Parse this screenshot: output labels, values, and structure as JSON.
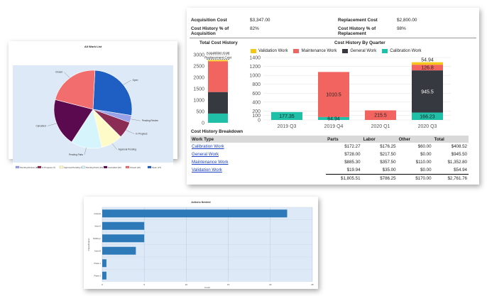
{
  "work_list": {
    "title": "All Work List",
    "chart_data": {
      "type": "pie",
      "categories": [
        "Open",
        "Pending Review",
        "In Progress",
        "Approval Pending",
        "Pending Parts",
        "Cancelled",
        "Closed"
      ],
      "values": [
        27,
        3,
        7,
        9,
        13,
        20,
        22
      ],
      "colors": [
        "#1f5fc4",
        "#9aa2e8",
        "#8b2c55",
        "#fffbc8",
        "#d6f4fb",
        "#5c0a4f",
        "#f26d6d"
      ],
      "legend": "bottom"
    },
    "legend_items": [
      "Pending Review (3)",
      "In Progress (7)",
      "Approval Pending (9)",
      "Pending Parts (13)",
      "Cancelled (20)",
      "Closed (22)",
      "Open (27)"
    ]
  },
  "cost": {
    "acquisition_label": "Acquisition Cost",
    "acquisition_value": "$3,347.00",
    "replacement_label": "Replacement Cost",
    "replacement_value": "$2,800.00",
    "pct_acq_label_1": "Cost History % of",
    "pct_acq_label_2": "Acquisition",
    "pct_acq_value": "82%",
    "pct_rep_label_1": "Cost History % of",
    "pct_rep_label_2": "Replacement",
    "pct_rep_value": "98%",
    "total_title": "Total Cost History",
    "quarter_title": "Cost History By Quarter",
    "breakdown_title": "Cost History Breakdown"
  },
  "total_cost_chart": {
    "chart_data": {
      "type": "bar",
      "stacked": true,
      "categories": [
        ""
      ],
      "series": [
        {
          "name": "Calibration Work",
          "values": [
            408.52
          ],
          "color": "#1fbfa8"
        },
        {
          "name": "General Work",
          "values": [
            945.5
          ],
          "color": "#36393f"
        },
        {
          "name": "Maintenance Work",
          "values": [
            1352.8
          ],
          "color": "#f2645f"
        },
        {
          "name": "Validation Work",
          "values": [
            54.94
          ],
          "color": "#f5c518"
        }
      ],
      "yticks": [
        0,
        500,
        1000,
        1500,
        2000,
        2500,
        3000
      ],
      "ylim": [
        0,
        3000
      ],
      "annotations": [
        "Acquisition Cost",
        "Replacement Cost"
      ],
      "annotation_values": [
        3347,
        2800
      ]
    }
  },
  "quarter_chart": {
    "chart_data": {
      "type": "bar",
      "stacked": true,
      "categories": [
        "2019 Q3",
        "2019 Q4",
        "2020 Q1",
        "2020 Q3"
      ],
      "series": [
        {
          "name": "Validation Work",
          "values": [
            0,
            0,
            0,
            54.94
          ],
          "color": "#f5c518"
        },
        {
          "name": "Maintenance Work",
          "values": [
            0,
            1010.5,
            215.5,
            126.8
          ],
          "color": "#f2645f"
        },
        {
          "name": "General Work",
          "values": [
            0,
            0,
            0,
            945.5
          ],
          "color": "#36393f"
        },
        {
          "name": "Calibration Work",
          "values": [
            177.35,
            64.94,
            0,
            166.23
          ],
          "color": "#1fbfa8"
        }
      ],
      "yticks": [
        0,
        100,
        200,
        400,
        600,
        800,
        1000,
        1200,
        1400
      ],
      "ylim": [
        0,
        1400
      ],
      "data_labels": [
        "177.35",
        "1010.5",
        "64.94",
        "215.5",
        "54.94",
        "126.8",
        "945.5",
        "166.23"
      ],
      "legend": "top"
    }
  },
  "breakdown": {
    "headers": [
      "Work Type",
      "Parts",
      "Labor",
      "Other",
      "Total"
    ],
    "rows": [
      {
        "type": "Calibration Work",
        "parts": "$172.27",
        "labor": "$176.25",
        "other": "$60.00",
        "total": "$408.52"
      },
      {
        "type": "General Work",
        "parts": "$728.00",
        "labor": "$217.50",
        "other": "$0.00",
        "total": "$945.50"
      },
      {
        "type": "Maintenance Work",
        "parts": "$885.30",
        "labor": "$357.50",
        "other": "$110.00",
        "total": "$1,352.80"
      },
      {
        "type": "Validation Work",
        "parts": "$19.94",
        "labor": "$35.00",
        "other": "$0.00",
        "total": "$54.94"
      }
    ],
    "totals": {
      "parts": "$1,805.51",
      "labor": "$786.25",
      "other": "$170.00",
      "total": "$2,761.76"
    }
  },
  "actions": {
    "title": "Actions Needed",
    "ylabel": "Classification",
    "xlabel": "Count",
    "chart_data": {
      "type": "bar",
      "orientation": "horizontal",
      "categories": [
        "Analysis",
        "Asset A",
        "Building I",
        "Asset B",
        "Phase 1",
        "Phase 2"
      ],
      "values": [
        22,
        5,
        5,
        4,
        0.5,
        0.5
      ],
      "xlim": [
        0,
        25
      ],
      "xticks": [
        0,
        5,
        10,
        15,
        20,
        25
      ],
      "color": "#2e7ab8"
    }
  }
}
